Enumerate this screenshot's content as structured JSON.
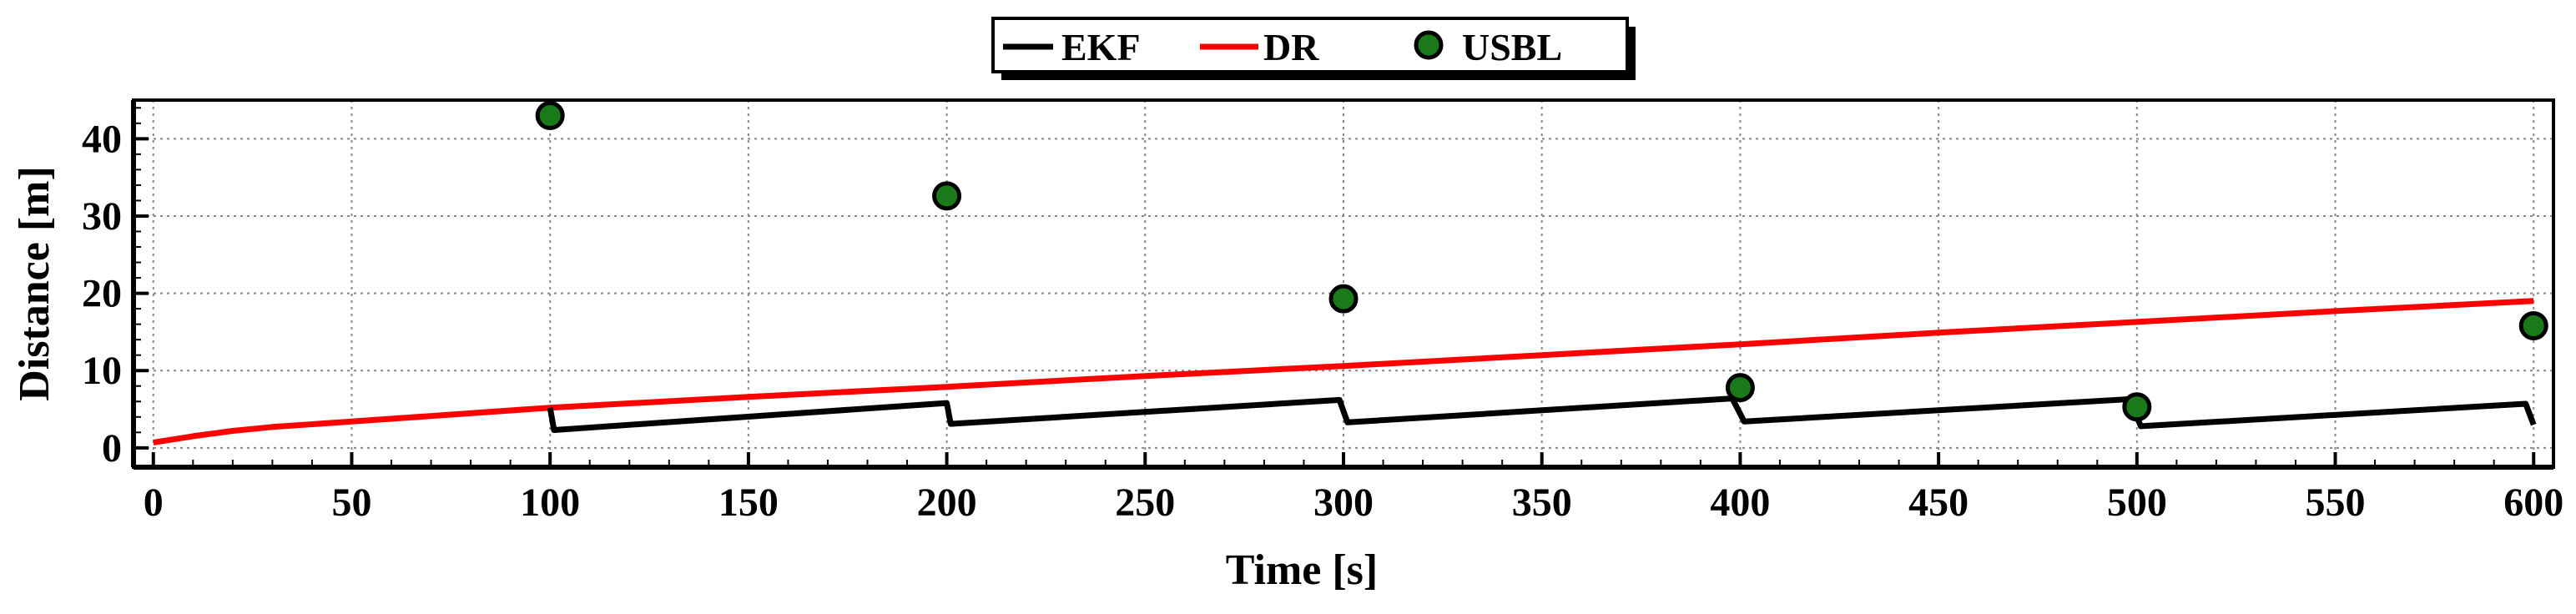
{
  "chart_data": {
    "type": "line",
    "xlabel": "Time [s]",
    "ylabel": "Distance [m]",
    "xlim": [
      -5,
      605
    ],
    "ylim": [
      -2.5,
      45
    ],
    "x_ticks": [
      0,
      50,
      100,
      150,
      200,
      250,
      300,
      350,
      400,
      450,
      500,
      550,
      600
    ],
    "y_ticks": [
      0,
      10,
      20,
      30,
      40
    ],
    "grid": true,
    "legend": {
      "placement": "top-center",
      "entries": [
        "EKF",
        "DR",
        "USBL"
      ]
    },
    "series": [
      {
        "name": "EKF",
        "kind": "line",
        "color": "#000000",
        "x": [
          100,
          101,
          200,
          201,
          299,
          301,
          398,
          401,
          498,
          501,
          598,
          600
        ],
        "y": [
          5.2,
          2.3,
          5.8,
          3.1,
          6.2,
          3.3,
          6.4,
          3.4,
          6.3,
          2.8,
          5.7,
          3.0
        ]
      },
      {
        "name": "DR",
        "kind": "line",
        "color": "#ff0000",
        "x": [
          0,
          5,
          10,
          20,
          30,
          50,
          75,
          100,
          150,
          200,
          250,
          300,
          350,
          400,
          450,
          500,
          550,
          600
        ],
        "y": [
          0.7,
          1.1,
          1.5,
          2.2,
          2.7,
          3.4,
          4.3,
          5.2,
          6.6,
          7.9,
          9.3,
          10.6,
          12.0,
          13.4,
          14.9,
          16.3,
          17.7,
          19.0
        ]
      },
      {
        "name": "USBL",
        "kind": "scatter",
        "color": "#1a7a1a",
        "x": [
          100,
          200,
          300,
          400,
          500,
          600
        ],
        "y": [
          43.0,
          32.6,
          19.3,
          7.8,
          5.3,
          15.8
        ]
      }
    ]
  }
}
